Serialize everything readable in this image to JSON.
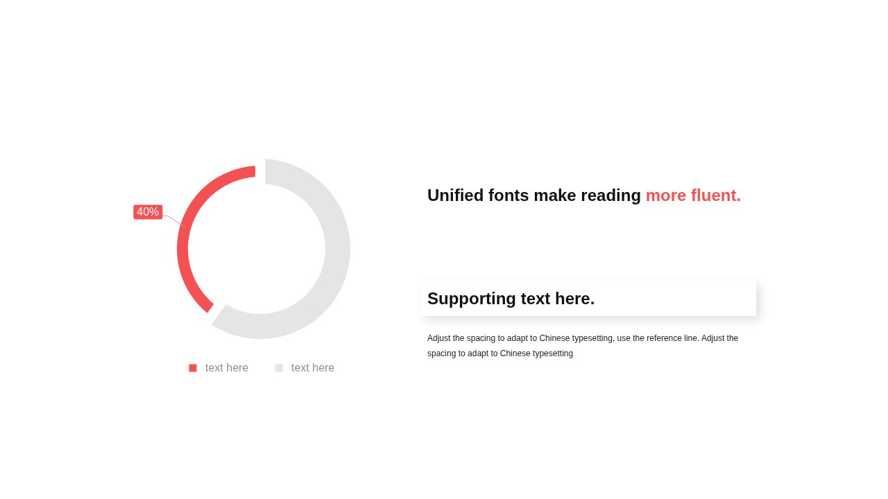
{
  "chart_data": {
    "type": "donut",
    "title": "Unified fonts make reading more fluent.",
    "subtitle": "Supporting text here.",
    "annotations": [
      "Adjust the spacing to adapt to Chinese typesetting, use the reference line. Adjust the spacing to adapt to Chinese typesetting"
    ],
    "categories": [
      "text here",
      "text here"
    ],
    "values": [
      40,
      60
    ],
    "colors": [
      "#f55052",
      "#e5e5e5"
    ],
    "value_labels": [
      "40%",
      null
    ],
    "legend": "bottom"
  }
}
